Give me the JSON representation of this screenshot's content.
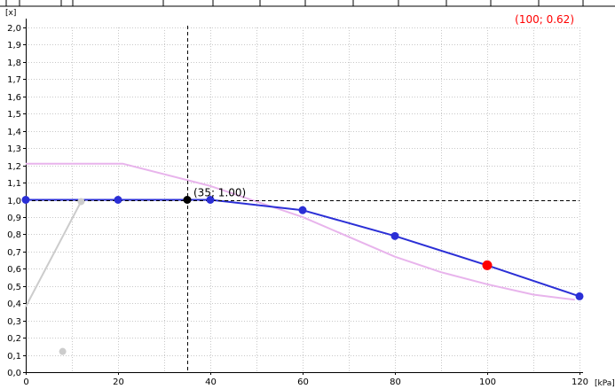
{
  "chart_data": {
    "type": "line",
    "xlabel": "",
    "ylabel": "",
    "x_unit": "[kPa]",
    "y_unit": "[x]",
    "xlim": [
      0,
      120
    ],
    "ylim": [
      0,
      2.0
    ],
    "x_ticks": [
      "0",
      "20",
      "40",
      "60",
      "80",
      "100",
      "120"
    ],
    "y_ticks": [
      "0,0",
      "0,1",
      "0,2",
      "0,3",
      "0,4",
      "0,5",
      "0,6",
      "0,7",
      "0,8",
      "0,9",
      "1,0",
      "1,1",
      "1,2",
      "1,3",
      "1,4",
      "1,5",
      "1,6",
      "1,7",
      "1,8",
      "1,9",
      "2,0"
    ],
    "grid": true,
    "series": [
      {
        "color": "#e8b4ec",
        "points": [
          [
            0,
            1.21
          ],
          [
            21,
            1.21
          ],
          [
            40,
            1.08
          ],
          [
            60,
            0.9
          ],
          [
            80,
            0.67
          ],
          [
            90,
            0.58
          ],
          [
            100,
            0.51
          ],
          [
            110,
            0.45
          ],
          [
            119,
            0.42
          ]
        ]
      },
      {
        "color": "#cccccc",
        "points": [
          [
            0,
            0.38
          ],
          [
            12,
            0.99
          ]
        ]
      },
      {
        "color": "#2b2fd6",
        "points": [
          [
            0,
            1.0
          ],
          [
            20,
            1.0
          ],
          [
            40,
            1.0
          ],
          [
            60,
            0.94
          ],
          [
            80,
            0.79
          ],
          [
            100,
            0.62
          ],
          [
            120,
            0.44
          ]
        ],
        "markers": [
          [
            0,
            1.0
          ],
          [
            20,
            1.0
          ],
          [
            40,
            1.0
          ],
          [
            60,
            0.94
          ],
          [
            80,
            0.79
          ],
          [
            120,
            0.44
          ]
        ]
      }
    ],
    "gray_points": [
      [
        12,
        0.99
      ],
      [
        8,
        0.12
      ]
    ],
    "crosshair": {
      "x": 35,
      "y": 1.0,
      "label": "(35; 1.00)",
      "color": "#000000"
    },
    "selected_point": {
      "x": 100,
      "y": 0.62,
      "color": "#ff0000"
    },
    "readout": {
      "text": "(100; 0.62)",
      "color": "#ff0000"
    }
  }
}
